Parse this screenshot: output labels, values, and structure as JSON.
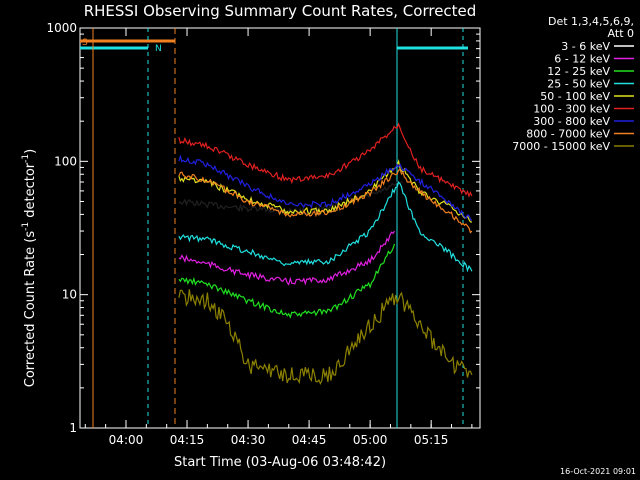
{
  "chart_data": {
    "type": "line",
    "title": "RHESSI Observing Summary Count Rates, Corrected",
    "xlabel": "Start Time (03-Aug-06 03:48:42)",
    "ylabel_main": "Corrected Count Rate (s",
    "ylabel_sup1": "-1",
    "ylabel_mid": " detector",
    "ylabel_sup2": "-1",
    "ylabel_end": ")",
    "y_scale": "log",
    "ylim": [
      1,
      1000
    ],
    "xlim_minutes": [
      "03:48:42",
      "05:27:00"
    ],
    "x_ticks": [
      "04:00",
      "04:15",
      "04:30",
      "04:45",
      "05:00",
      "05:15"
    ],
    "y_ticks": [
      "1",
      "10",
      "100",
      "1000"
    ],
    "legend_title": [
      "Det 1,3,4,5,6,9,",
      "Att 0"
    ],
    "legend_placement": "top-right, outside plot",
    "footer_date": "16-Oct-2021 09:01",
    "flag_labels": [
      "S",
      "N"
    ],
    "series": [
      {
        "name": "3 - 6 keV",
        "color": "#000000",
        "points": [
          [
            "04:13",
            50
          ],
          [
            "04:30",
            44
          ],
          [
            "04:45",
            42
          ],
          [
            "05:00",
            55
          ],
          [
            "05:08",
            70
          ]
        ]
      },
      {
        "name": "6 - 12 keV",
        "color": "#e020e0",
        "points": [
          [
            "04:13",
            19
          ],
          [
            "04:20",
            17
          ],
          [
            "04:30",
            14
          ],
          [
            "04:40",
            12.5
          ],
          [
            "04:50",
            13
          ],
          [
            "05:00",
            18
          ],
          [
            "05:06",
            30
          ]
        ]
      },
      {
        "name": "12 - 25 keV",
        "color": "#20e020",
        "points": [
          [
            "04:13",
            13
          ],
          [
            "04:20",
            12
          ],
          [
            "04:30",
            9
          ],
          [
            "04:40",
            7
          ],
          [
            "04:50",
            7.5
          ],
          [
            "05:00",
            12
          ],
          [
            "05:06",
            24
          ]
        ]
      },
      {
        "name": "25 - 50 keV",
        "color": "#20e0e0",
        "points": [
          [
            "04:13",
            27
          ],
          [
            "04:20",
            26
          ],
          [
            "04:30",
            21
          ],
          [
            "04:40",
            17
          ],
          [
            "04:50",
            18
          ],
          [
            "05:00",
            30
          ],
          [
            "05:07",
            70
          ],
          [
            "05:12",
            30
          ],
          [
            "05:20",
            20
          ],
          [
            "05:25",
            15
          ]
        ]
      },
      {
        "name": "50 - 100 keV",
        "color": "#e0e020",
        "points": [
          [
            "04:13",
            75
          ],
          [
            "04:20",
            70
          ],
          [
            "04:30",
            52
          ],
          [
            "04:40",
            42
          ],
          [
            "04:50",
            43
          ],
          [
            "05:00",
            60
          ],
          [
            "05:07",
            95
          ],
          [
            "05:12",
            60
          ],
          [
            "05:20",
            45
          ],
          [
            "05:25",
            35
          ]
        ]
      },
      {
        "name": "100 - 300 keV",
        "color": "#e02020",
        "points": [
          [
            "04:13",
            145
          ],
          [
            "04:20",
            130
          ],
          [
            "04:30",
            95
          ],
          [
            "04:40",
            72
          ],
          [
            "04:50",
            78
          ],
          [
            "05:00",
            120
          ],
          [
            "05:07",
            190
          ],
          [
            "05:12",
            90
          ],
          [
            "05:20",
            65
          ],
          [
            "05:25",
            55
          ]
        ]
      },
      {
        "name": "300 - 800 keV",
        "color": "#2020e0",
        "points": [
          [
            "04:13",
            105
          ],
          [
            "04:20",
            95
          ],
          [
            "04:30",
            65
          ],
          [
            "04:40",
            47
          ],
          [
            "04:50",
            48
          ],
          [
            "05:00",
            68
          ],
          [
            "05:07",
            95
          ],
          [
            "05:12",
            72
          ],
          [
            "05:20",
            48
          ],
          [
            "05:25",
            36
          ]
        ]
      },
      {
        "name": "800 - 7000 keV",
        "color": "#f08020",
        "points": [
          [
            "04:13",
            80
          ],
          [
            "04:20",
            72
          ],
          [
            "04:30",
            50
          ],
          [
            "04:40",
            40
          ],
          [
            "04:50",
            41
          ],
          [
            "05:00",
            58
          ],
          [
            "05:07",
            85
          ],
          [
            "05:12",
            60
          ],
          [
            "05:20",
            40
          ],
          [
            "05:25",
            30
          ]
        ]
      },
      {
        "name": "7000 - 15000 keV",
        "color": "#8b8000",
        "points": [
          [
            "04:13",
            10
          ],
          [
            "04:20",
            9
          ],
          [
            "04:25",
            6
          ],
          [
            "04:30",
            3
          ],
          [
            "04:40",
            2.5
          ],
          [
            "04:50",
            2.5
          ],
          [
            "05:00",
            6
          ],
          [
            "05:07",
            10
          ],
          [
            "05:12",
            6
          ],
          [
            "05:20",
            3
          ],
          [
            "05:25",
            2.5
          ]
        ]
      }
    ]
  }
}
